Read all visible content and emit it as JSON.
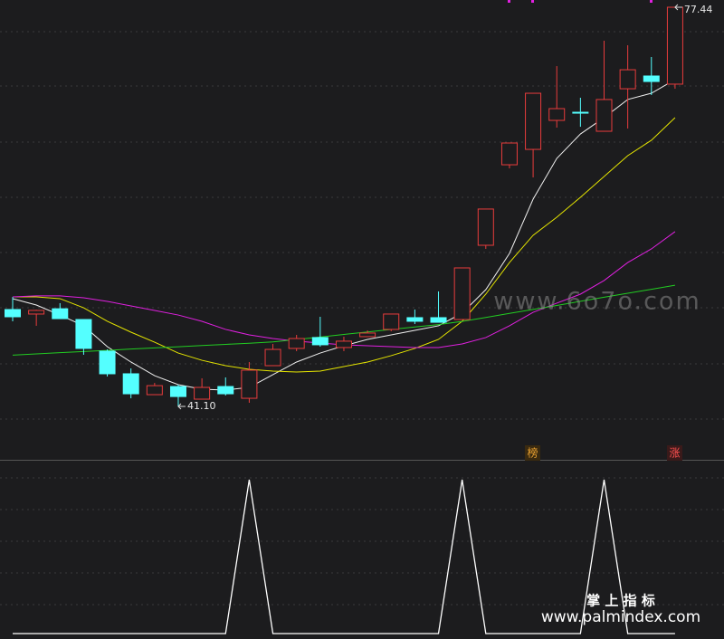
{
  "chart_data": [
    {
      "type": "candlestick",
      "ylim": [
        36.24,
        78.1
      ],
      "up_color": "#e83c3c",
      "down_color": "#54ffff",
      "open": [
        49.92,
        49.51,
        49.99,
        49.01,
        46.13,
        44.07,
        42.17,
        42.91,
        41.76,
        42.91,
        41.84,
        44.81,
        46.38,
        47.37,
        46.46,
        47.45,
        48.11,
        49.18,
        49.18,
        49.01,
        55.77,
        63.1,
        64.5,
        67.14,
        67.88,
        66.15,
        70.02,
        71.18,
        70.44
      ],
      "high": [
        51.06,
        49.9,
        50.5,
        49.01,
        46.29,
        44.56,
        43.24,
        43.08,
        43.66,
        43.74,
        45.14,
        46.79,
        47.61,
        49.26,
        47.45,
        48.02,
        49.51,
        49.92,
        51.57,
        53.71,
        59.07,
        65.08,
        69.61,
        72.08,
        69.2,
        74.39,
        73.98,
        72.91,
        77.44
      ],
      "low": [
        48.85,
        48.44,
        49.09,
        45.8,
        43.82,
        41.84,
        42.17,
        41.1,
        41.76,
        42.09,
        41.43,
        44.81,
        46.13,
        46.54,
        46.13,
        47.45,
        47.94,
        48.6,
        48.76,
        49.01,
        55.44,
        62.77,
        61.95,
        66.48,
        66.56,
        66.15,
        66.4,
        69.45,
        70.02
      ],
      "close": [
        49.26,
        49.84,
        49.09,
        46.38,
        44.07,
        42.25,
        42.99,
        42.0,
        42.83,
        42.25,
        44.4,
        46.29,
        47.28,
        46.71,
        47.04,
        47.78,
        49.51,
        48.85,
        48.76,
        53.71,
        59.07,
        65.08,
        69.61,
        68.21,
        67.8,
        69.04,
        71.75,
        70.68,
        77.44
      ],
      "series": [
        {
          "color": "#f0f0f0",
          "values": [
            50.91,
            50.33,
            49.42,
            48.44,
            46.54,
            45.14,
            43.9,
            43.08,
            42.67,
            42.59,
            42.83,
            43.99,
            45.14,
            45.96,
            46.62,
            47.2,
            47.61,
            48.02,
            48.44,
            49.59,
            51.73,
            55.03,
            59.97,
            63.68,
            65.9,
            67.39,
            69.04,
            69.61,
            70.85
          ]
        },
        {
          "color": "#e6e600",
          "values": [
            51.07,
            51.07,
            50.91,
            50.08,
            48.85,
            47.86,
            46.95,
            45.96,
            45.3,
            44.81,
            44.48,
            44.32,
            44.23,
            44.32,
            44.73,
            45.14,
            45.72,
            46.38,
            47.2,
            48.85,
            51.32,
            54.2,
            56.68,
            58.32,
            60.14,
            62.03,
            63.93,
            65.33,
            67.39
          ]
        },
        {
          "color": "#e020e0",
          "values": [
            51.07,
            51.16,
            51.16,
            50.99,
            50.66,
            50.25,
            49.84,
            49.42,
            48.85,
            48.11,
            47.61,
            47.28,
            47.04,
            46.87,
            46.71,
            46.62,
            46.54,
            46.46,
            46.46,
            46.79,
            47.37,
            48.44,
            49.67,
            50.5,
            51.32,
            52.56,
            54.2,
            55.44,
            57.01
          ]
        },
        {
          "color": "#22cc22",
          "values": [
            45.77,
            45.88,
            45.99,
            46.1,
            46.2,
            46.32,
            46.43,
            46.53,
            46.64,
            46.75,
            46.85,
            46.97,
            47.19,
            47.42,
            47.65,
            47.88,
            48.11,
            48.33,
            48.55,
            48.84,
            49.2,
            49.57,
            49.93,
            50.29,
            50.67,
            51.04,
            51.4,
            51.76,
            52.13
          ]
        }
      ],
      "extreme_labels": [
        {
          "value": 41.1,
          "label": "41.10"
        },
        {
          "value": 77.44,
          "label": "77.44"
        }
      ],
      "badges": [
        "榜",
        "涨"
      ],
      "watermark": "www.6o7o.com"
    },
    {
      "type": "line",
      "ylim": [
        0,
        1
      ],
      "color": "#ffffff",
      "values": [
        0,
        0,
        0,
        0,
        0,
        0,
        0,
        0,
        0,
        0,
        1,
        0,
        0,
        0,
        0,
        0,
        0,
        0,
        0,
        1,
        0,
        0,
        0,
        0,
        0,
        1,
        0,
        0,
        0
      ],
      "footer": [
        "掌 上 指 标",
        "www.palmindex.com"
      ]
    }
  ]
}
